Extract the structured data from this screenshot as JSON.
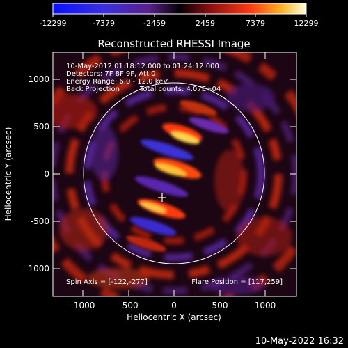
{
  "colorbar": {
    "ticks": [
      "-12299",
      "-7379",
      "-2459",
      "2459",
      "7379",
      "12299"
    ]
  },
  "plot": {
    "title": "Reconstructed RHESSI Image",
    "xlabel": "Heliocentric X (arcsec)",
    "ylabel": "Heliocentric Y (arcsec)",
    "xticks": [
      "-1000",
      "-500",
      "0",
      "500",
      "1000"
    ],
    "yticks": [
      "1000",
      "500",
      "0",
      "-500",
      "-1000"
    ]
  },
  "annotations": {
    "time_range": "10-May-2012 01:18:12.000 to 01:24:12.000",
    "detectors": "Detectors: 7F 8F 9F, Att 0",
    "energy": "Energy Range: 6.0 - 12.0 keV",
    "method": "Back Projection",
    "counts": "Total counts: 4.07E+04",
    "spin_axis": "Spin Axis = [-122,-277]",
    "flare_position": "Flare Position = [117,259]"
  },
  "footer": {
    "timestamp": "10-May-2022 16:32"
  }
}
